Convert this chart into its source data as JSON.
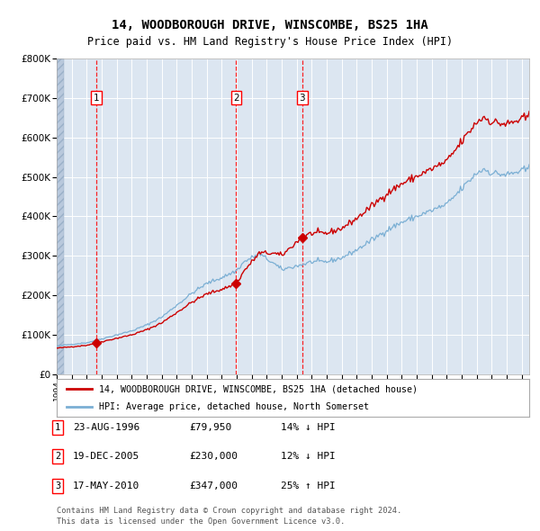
{
  "title1": "14, WOODBOROUGH DRIVE, WINSCOMBE, BS25 1HA",
  "title2": "Price paid vs. HM Land Registry's House Price Index (HPI)",
  "red_line_color": "#cc0000",
  "blue_line_color": "#7bafd4",
  "plot_bg_color": "#dce6f1",
  "hatch_color": "#b8c8dc",
  "sale_dates": [
    "1996-08-23",
    "2005-12-19",
    "2010-05-17"
  ],
  "sale_prices": [
    79950,
    230000,
    347000
  ],
  "legend_red": "14, WOODBOROUGH DRIVE, WINSCOMBE, BS25 1HA (detached house)",
  "legend_blue": "HPI: Average price, detached house, North Somerset",
  "table_rows": [
    [
      "1",
      "23-AUG-1996",
      "£79,950",
      "14% ↓ HPI"
    ],
    [
      "2",
      "19-DEC-2005",
      "£230,000",
      "12% ↓ HPI"
    ],
    [
      "3",
      "17-MAY-2010",
      "£347,000",
      "25% ↑ HPI"
    ]
  ],
  "footnote1": "Contains HM Land Registry data © Crown copyright and database right 2024.",
  "footnote2": "This data is licensed under the Open Government Licence v3.0.",
  "yticks": [
    0,
    100000,
    200000,
    300000,
    400000,
    500000,
    600000,
    700000,
    800000
  ],
  "ytick_labels": [
    "£0",
    "£100K",
    "£200K",
    "£300K",
    "£400K",
    "£500K",
    "£600K",
    "£700K",
    "£800K"
  ]
}
